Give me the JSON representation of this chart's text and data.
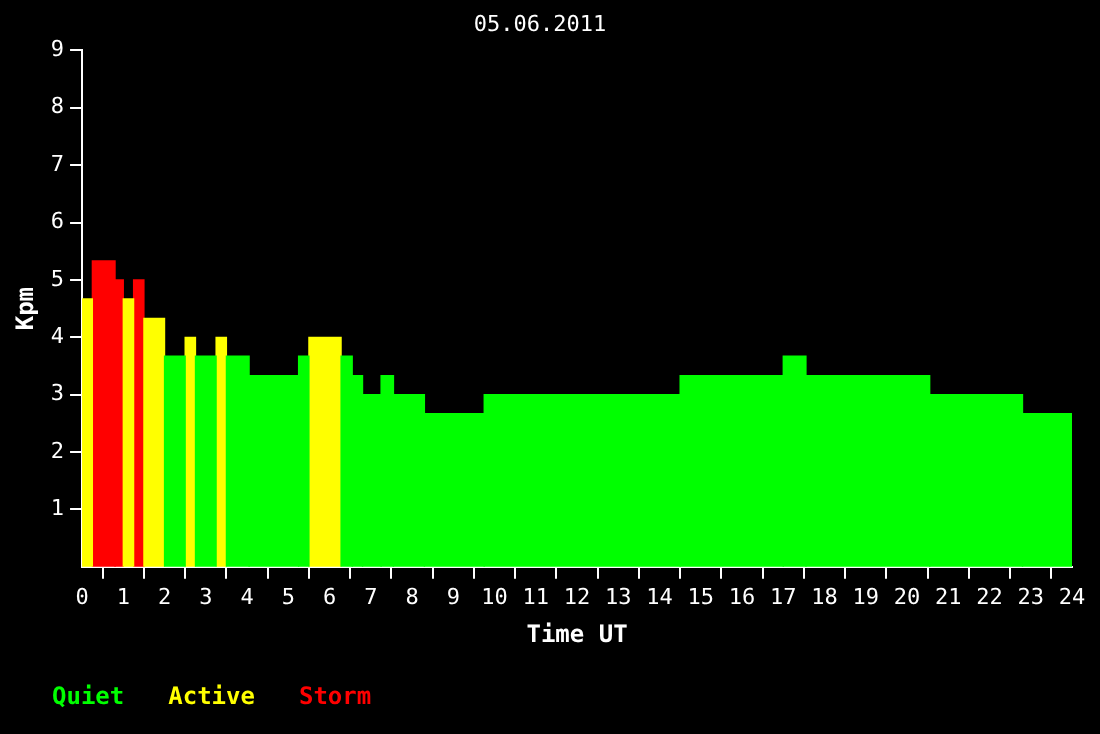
{
  "chart_data": {
    "type": "histogram",
    "title": "05.06.2011",
    "xlabel": "Time UT",
    "ylabel": "Kpm",
    "bins": [
      0,
      0.25,
      0.8,
      1,
      1.25,
      1.5,
      2,
      2.5,
      2.75,
      3.25,
      3.5,
      4.05,
      5.25,
      5.5,
      6.28,
      6.55,
      6.8,
      7.25,
      7.55,
      8.3,
      9.75,
      14.5,
      17,
      17.55,
      20.55,
      22.8,
      24
    ],
    "series": [
      {
        "name": "Quiet",
        "color": "#00ff00",
        "values": [
          null,
          null,
          null,
          null,
          null,
          null,
          3.67,
          null,
          3.67,
          null,
          3.67,
          3.33,
          3.67,
          null,
          3.67,
          3.33,
          3,
          3.33,
          3,
          2.67,
          3,
          3.33,
          3.67,
          3.33,
          3,
          2.67
        ]
      },
      {
        "name": "Active",
        "color": "#ffff00",
        "values": [
          4.67,
          null,
          null,
          4.67,
          null,
          4.33,
          null,
          4,
          null,
          4,
          null,
          null,
          null,
          4,
          null,
          null,
          null,
          null,
          null,
          null,
          null,
          null,
          null,
          null,
          null,
          null
        ]
      },
      {
        "name": "Storm",
        "color": "#ff0000",
        "values": [
          null,
          5.33,
          5,
          null,
          5,
          null,
          null,
          null,
          null,
          null,
          null,
          null,
          null,
          null,
          null,
          null,
          null,
          null,
          null,
          null,
          null,
          null,
          null,
          null,
          null,
          null
        ]
      }
    ],
    "xlim": [
      0,
      24
    ],
    "xticks": [
      0,
      1,
      2,
      3,
      4,
      5,
      6,
      7,
      8,
      9,
      10,
      11,
      12,
      13,
      14,
      15,
      16,
      17,
      18,
      19,
      20,
      21,
      22,
      23,
      24
    ],
    "ylim": [
      0,
      9
    ],
    "yticks": [
      1,
      2,
      3,
      4,
      5,
      6,
      7,
      8,
      9
    ],
    "grid": false,
    "legend": "bottom left"
  }
}
